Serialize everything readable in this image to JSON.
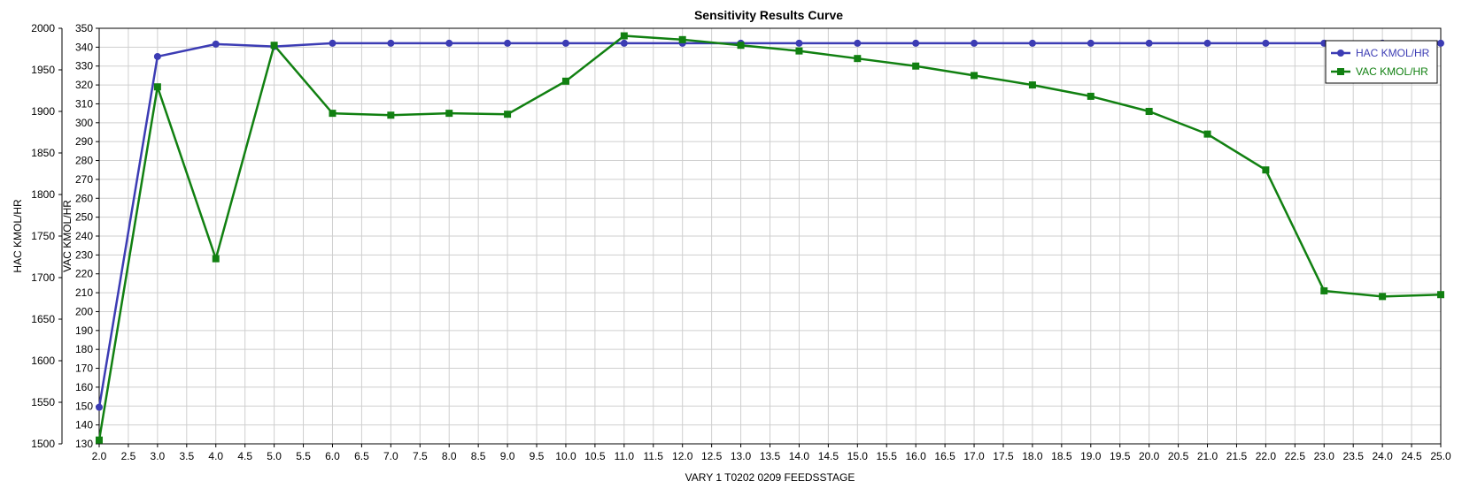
{
  "colors": {
    "hac": "#3c3cb4",
    "vac": "#118011",
    "grid": "#cfcfcf",
    "axis": "#000000"
  },
  "chart_data": {
    "type": "line",
    "title": "Sensitivity Results Curve",
    "xlabel": "VARY   1 T0202 0209 FEEDSSTAGE",
    "xlim": [
      2.0,
      25.0
    ],
    "x_ticks": [
      "2.0",
      "2.5",
      "3.0",
      "3.5",
      "4.0",
      "4.5",
      "5.0",
      "5.5",
      "6.0",
      "6.5",
      "7.0",
      "7.5",
      "8.0",
      "8.5",
      "9.0",
      "9.5",
      "10.0",
      "10.5",
      "11.0",
      "11.5",
      "12.0",
      "12.5",
      "13.0",
      "13.5",
      "14.0",
      "14.5",
      "15.0",
      "15.5",
      "16.0",
      "16.5",
      "17.0",
      "17.5",
      "18.0",
      "18.5",
      "19.0",
      "19.5",
      "20.0",
      "20.5",
      "21.0",
      "21.5",
      "22.0",
      "22.5",
      "23.0",
      "23.5",
      "24.0",
      "24.5",
      "25.0"
    ],
    "y_axes": [
      {
        "label": "HAC KMOL/HR",
        "lim": [
          1500,
          2000
        ],
        "ticks": [
          "1500",
          "1550",
          "1600",
          "1650",
          "1700",
          "1750",
          "1800",
          "1850",
          "1900",
          "1950",
          "2000"
        ]
      },
      {
        "label": "VAC KMOL/HR",
        "lim": [
          130,
          350
        ],
        "ticks": [
          "130",
          "140",
          "150",
          "160",
          "170",
          "180",
          "190",
          "200",
          "210",
          "220",
          "230",
          "240",
          "250",
          "260",
          "270",
          "280",
          "290",
          "300",
          "310",
          "320",
          "330",
          "340",
          "350"
        ]
      }
    ],
    "legend_position": "top-right",
    "series": [
      {
        "name": "HAC KMOL/HR",
        "axis": 0,
        "marker": "circle",
        "x": [
          2,
          3,
          4,
          5,
          6,
          7,
          8,
          9,
          10,
          11,
          12,
          13,
          14,
          15,
          16,
          17,
          18,
          19,
          20,
          21,
          22,
          23,
          24,
          25
        ],
        "values": [
          1544,
          1966,
          1981,
          1978,
          1982,
          1982,
          1982,
          1982,
          1982,
          1982,
          1982,
          1982,
          1982,
          1982,
          1982,
          1982,
          1982,
          1982,
          1982,
          1982,
          1982,
          1982,
          1982,
          1982
        ]
      },
      {
        "name": "VAC KMOL/HR",
        "axis": 1,
        "marker": "square",
        "x": [
          2,
          3,
          4,
          5,
          6,
          7,
          8,
          9,
          10,
          11,
          12,
          13,
          14,
          15,
          16,
          17,
          18,
          19,
          20,
          21,
          22,
          23,
          24,
          25
        ],
        "values": [
          132,
          319,
          228,
          341,
          305,
          304,
          305,
          304.5,
          322,
          346,
          344,
          341,
          338,
          334,
          330,
          325,
          320,
          314,
          306,
          294,
          275,
          211,
          208,
          209
        ]
      }
    ]
  }
}
